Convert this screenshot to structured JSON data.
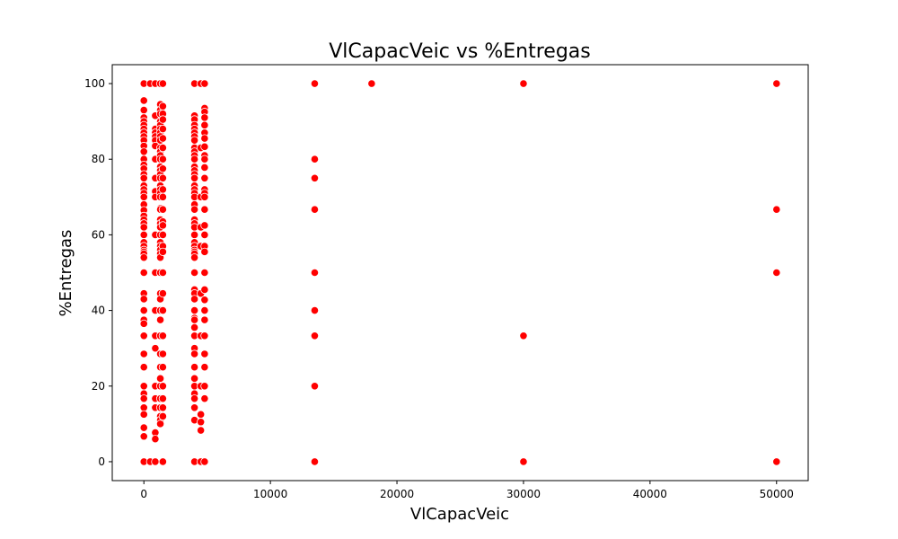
{
  "chart_data": {
    "type": "scatter",
    "title": "VlCapacVeic vs %Entregas",
    "xlabel": "VlCapacVeic",
    "ylabel": "%Entregas",
    "xlim": [
      -2500,
      52500
    ],
    "ylim": [
      -5,
      105
    ],
    "x_ticks": [
      0,
      10000,
      20000,
      30000,
      40000,
      50000
    ],
    "y_ticks": [
      0,
      20,
      40,
      60,
      80,
      100
    ],
    "grid": false,
    "marker_color": "#ff0000",
    "series": [
      {
        "points": [
          [
            0,
            100
          ],
          [
            0,
            95.5
          ],
          [
            0,
            93
          ],
          [
            0,
            91
          ],
          [
            0,
            90
          ],
          [
            0,
            89
          ],
          [
            0,
            88
          ],
          [
            0,
            87
          ],
          [
            0,
            86
          ],
          [
            0,
            85
          ],
          [
            0,
            83.5
          ],
          [
            0,
            82
          ],
          [
            0,
            80
          ],
          [
            0,
            78.5
          ],
          [
            0,
            77.5
          ],
          [
            0,
            76
          ],
          [
            0,
            75
          ],
          [
            0,
            73
          ],
          [
            0,
            72
          ],
          [
            0,
            71
          ],
          [
            0,
            70
          ],
          [
            0,
            68
          ],
          [
            0,
            66.5
          ],
          [
            0,
            65
          ],
          [
            0,
            64
          ],
          [
            0,
            63
          ],
          [
            0,
            62
          ],
          [
            0,
            60
          ],
          [
            0,
            58
          ],
          [
            0,
            57
          ],
          [
            0,
            56
          ],
          [
            0,
            55.5
          ],
          [
            0,
            55
          ],
          [
            0,
            54
          ],
          [
            0,
            50
          ],
          [
            0,
            44.5
          ],
          [
            0,
            43
          ],
          [
            0,
            40
          ],
          [
            0,
            37.5
          ],
          [
            0,
            36.5
          ],
          [
            0,
            33.3
          ],
          [
            0,
            28.5
          ],
          [
            0,
            25
          ],
          [
            0,
            20
          ],
          [
            0,
            18
          ],
          [
            0,
            16.7
          ],
          [
            0,
            14.3
          ],
          [
            0,
            12.5
          ],
          [
            0,
            9
          ],
          [
            0,
            6.7
          ],
          [
            0,
            0
          ],
          [
            500,
            100
          ],
          [
            500,
            0
          ],
          [
            900,
            100
          ],
          [
            900,
            91.5
          ],
          [
            900,
            88
          ],
          [
            900,
            87
          ],
          [
            900,
            86
          ],
          [
            900,
            85
          ],
          [
            900,
            83.5
          ],
          [
            900,
            80
          ],
          [
            900,
            75
          ],
          [
            900,
            71.5
          ],
          [
            900,
            70
          ],
          [
            900,
            60
          ],
          [
            900,
            50
          ],
          [
            900,
            40
          ],
          [
            900,
            33.3
          ],
          [
            900,
            30
          ],
          [
            900,
            20
          ],
          [
            900,
            16.7
          ],
          [
            900,
            14.3
          ],
          [
            900,
            7.7
          ],
          [
            900,
            6
          ],
          [
            900,
            0
          ],
          [
            1300,
            100
          ],
          [
            1300,
            94.5
          ],
          [
            1300,
            93
          ],
          [
            1300,
            92
          ],
          [
            1300,
            90
          ],
          [
            1300,
            89
          ],
          [
            1300,
            88
          ],
          [
            1300,
            87
          ],
          [
            1300,
            86
          ],
          [
            1300,
            85
          ],
          [
            1300,
            83
          ],
          [
            1300,
            82
          ],
          [
            1300,
            81
          ],
          [
            1300,
            80
          ],
          [
            1300,
            78
          ],
          [
            1300,
            77
          ],
          [
            1300,
            76
          ],
          [
            1300,
            75
          ],
          [
            1300,
            73
          ],
          [
            1300,
            72
          ],
          [
            1300,
            71
          ],
          [
            1300,
            70
          ],
          [
            1300,
            67
          ],
          [
            1300,
            66.7
          ],
          [
            1300,
            64
          ],
          [
            1300,
            63
          ],
          [
            1300,
            62
          ],
          [
            1300,
            60
          ],
          [
            1300,
            58
          ],
          [
            1300,
            57
          ],
          [
            1300,
            56
          ],
          [
            1300,
            55
          ],
          [
            1300,
            54
          ],
          [
            1300,
            50
          ],
          [
            1300,
            44.5
          ],
          [
            1300,
            43
          ],
          [
            1300,
            40
          ],
          [
            1300,
            37.5
          ],
          [
            1300,
            33.3
          ],
          [
            1300,
            28.5
          ],
          [
            1300,
            25
          ],
          [
            1300,
            22
          ],
          [
            1300,
            20
          ],
          [
            1300,
            16.7
          ],
          [
            1300,
            14.3
          ],
          [
            1300,
            12
          ],
          [
            1300,
            11
          ],
          [
            1300,
            10
          ],
          [
            1500,
            100
          ],
          [
            1500,
            94
          ],
          [
            1500,
            92
          ],
          [
            1500,
            90.5
          ],
          [
            1500,
            88
          ],
          [
            1500,
            85.5
          ],
          [
            1500,
            83
          ],
          [
            1500,
            80
          ],
          [
            1500,
            77.5
          ],
          [
            1500,
            75
          ],
          [
            1500,
            72
          ],
          [
            1500,
            70
          ],
          [
            1500,
            66.7
          ],
          [
            1500,
            63.5
          ],
          [
            1500,
            62.5
          ],
          [
            1500,
            60
          ],
          [
            1500,
            57
          ],
          [
            1500,
            55.5
          ],
          [
            1500,
            50
          ],
          [
            1500,
            44.5
          ],
          [
            1500,
            40
          ],
          [
            1500,
            33.3
          ],
          [
            1500,
            28.5
          ],
          [
            1500,
            25
          ],
          [
            1500,
            20
          ],
          [
            1500,
            16.7
          ],
          [
            1500,
            14.3
          ],
          [
            1500,
            12
          ],
          [
            1500,
            0
          ],
          [
            4000,
            100
          ],
          [
            4000,
            91.5
          ],
          [
            4000,
            90.5
          ],
          [
            4000,
            89
          ],
          [
            4000,
            88
          ],
          [
            4000,
            87
          ],
          [
            4000,
            86
          ],
          [
            4000,
            85
          ],
          [
            4000,
            83
          ],
          [
            4000,
            82
          ],
          [
            4000,
            81
          ],
          [
            4000,
            80
          ],
          [
            4000,
            78
          ],
          [
            4000,
            77
          ],
          [
            4000,
            76
          ],
          [
            4000,
            75
          ],
          [
            4000,
            73
          ],
          [
            4000,
            72
          ],
          [
            4000,
            71
          ],
          [
            4000,
            70
          ],
          [
            4000,
            68
          ],
          [
            4000,
            66.7
          ],
          [
            4000,
            64
          ],
          [
            4000,
            63
          ],
          [
            4000,
            62
          ],
          [
            4000,
            60
          ],
          [
            4000,
            58
          ],
          [
            4000,
            57
          ],
          [
            4000,
            56
          ],
          [
            4000,
            55.5
          ],
          [
            4000,
            55
          ],
          [
            4000,
            54
          ],
          [
            4000,
            50
          ],
          [
            4000,
            45.5
          ],
          [
            4000,
            44.5
          ],
          [
            4000,
            43
          ],
          [
            4000,
            40
          ],
          [
            4000,
            38
          ],
          [
            4000,
            37.5
          ],
          [
            4000,
            35.5
          ],
          [
            4000,
            33.3
          ],
          [
            4000,
            30
          ],
          [
            4000,
            28.5
          ],
          [
            4000,
            25
          ],
          [
            4000,
            22
          ],
          [
            4000,
            20
          ],
          [
            4000,
            18
          ],
          [
            4000,
            16.7
          ],
          [
            4000,
            14.3
          ],
          [
            4000,
            11
          ],
          [
            4000,
            0
          ],
          [
            4500,
            100
          ],
          [
            4500,
            83
          ],
          [
            4500,
            70
          ],
          [
            4500,
            62
          ],
          [
            4500,
            57
          ],
          [
            4500,
            44.5
          ],
          [
            4500,
            33.3
          ],
          [
            4500,
            20
          ],
          [
            4500,
            12.5
          ],
          [
            4500,
            10.5
          ],
          [
            4500,
            8.3
          ],
          [
            4500,
            0
          ],
          [
            4800,
            100
          ],
          [
            4800,
            93.5
          ],
          [
            4800,
            92.5
          ],
          [
            4800,
            91
          ],
          [
            4800,
            89
          ],
          [
            4800,
            87
          ],
          [
            4800,
            85.5
          ],
          [
            4800,
            83.3
          ],
          [
            4800,
            81
          ],
          [
            4800,
            80
          ],
          [
            4800,
            77.8
          ],
          [
            4800,
            75
          ],
          [
            4800,
            72
          ],
          [
            4800,
            71
          ],
          [
            4800,
            70
          ],
          [
            4800,
            66.7
          ],
          [
            4800,
            62.5
          ],
          [
            4800,
            60
          ],
          [
            4800,
            57
          ],
          [
            4800,
            55.5
          ],
          [
            4800,
            50
          ],
          [
            4800,
            45.5
          ],
          [
            4800,
            42.8
          ],
          [
            4800,
            40
          ],
          [
            4800,
            37.5
          ],
          [
            4800,
            33.3
          ],
          [
            4800,
            28.5
          ],
          [
            4800,
            25
          ],
          [
            4800,
            20
          ],
          [
            4800,
            16.7
          ],
          [
            4800,
            0
          ],
          [
            13500,
            100
          ],
          [
            13500,
            80
          ],
          [
            13500,
            75
          ],
          [
            13500,
            66.7
          ],
          [
            13500,
            50
          ],
          [
            13500,
            40
          ],
          [
            13500,
            33.3
          ],
          [
            13500,
            20
          ],
          [
            13500,
            0
          ],
          [
            18000,
            100
          ],
          [
            30000,
            100
          ],
          [
            30000,
            33.3
          ],
          [
            30000,
            0
          ],
          [
            50000,
            100
          ],
          [
            50000,
            66.7
          ],
          [
            50000,
            50
          ],
          [
            50000,
            0
          ]
        ]
      }
    ]
  }
}
